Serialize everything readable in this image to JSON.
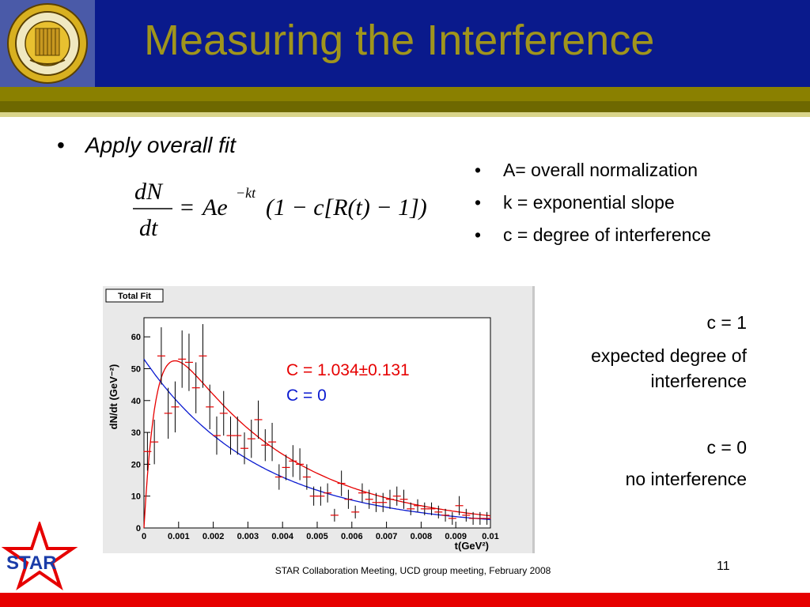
{
  "slide": {
    "title": "Measuring the Interference",
    "bullet_main": "Apply overall fit",
    "bullet_symbol": "•",
    "definitions": [
      "A= overall normalization",
      "k = exponential slope",
      "c = degree of interference"
    ],
    "notes": {
      "c1_title": "c = 1",
      "c1_line1": "expected degree of",
      "c1_line2": "interference",
      "c0_title": "c = 0",
      "c0_line1": "no interference"
    },
    "footer": "STAR Collaboration Meeting, UCD group meeting,  February 2008",
    "page_number": "11",
    "logo_text": "STAR"
  },
  "formula": {
    "numerator": "dN",
    "denominator": "dt",
    "rhs": "Ae",
    "exponent": "−kt",
    "bracket": "(1 − c[R(t) − 1])"
  },
  "chart_data": {
    "type": "scatter",
    "title": "Total Fit",
    "xlabel": "t(GeV²)",
    "ylabel": "dN/dt (GeV⁻²)",
    "xlim": [
      0,
      0.01
    ],
    "ylim": [
      0,
      66
    ],
    "x_ticks": [
      0,
      0.001,
      0.002,
      0.003,
      0.004,
      0.005,
      0.006,
      0.007,
      0.008,
      0.009,
      0.01
    ],
    "x_tick_labels": [
      "0",
      "0.001",
      "0.002",
      "0.003",
      "0.004",
      "0.005",
      "0.006",
      "0.007",
      "0.008",
      "0.009",
      "0.01"
    ],
    "y_ticks": [
      0,
      10,
      20,
      30,
      40,
      50,
      60
    ],
    "y_tick_labels": [
      "0",
      "10",
      "20",
      "30",
      "40",
      "50",
      "60"
    ],
    "points": [
      {
        "x": 0.0001,
        "y": 24,
        "err": 6
      },
      {
        "x": 0.0003,
        "y": 27,
        "err": 7
      },
      {
        "x": 0.0005,
        "y": 54,
        "err": 9
      },
      {
        "x": 0.0007,
        "y": 36,
        "err": 8
      },
      {
        "x": 0.0009,
        "y": 38,
        "err": 8
      },
      {
        "x": 0.0011,
        "y": 53,
        "err": 9
      },
      {
        "x": 0.0013,
        "y": 52,
        "err": 9
      },
      {
        "x": 0.0015,
        "y": 44,
        "err": 8
      },
      {
        "x": 0.0017,
        "y": 54,
        "err": 10
      },
      {
        "x": 0.0019,
        "y": 38,
        "err": 7
      },
      {
        "x": 0.0021,
        "y": 29,
        "err": 6
      },
      {
        "x": 0.0023,
        "y": 36,
        "err": 7
      },
      {
        "x": 0.0025,
        "y": 29,
        "err": 6
      },
      {
        "x": 0.0027,
        "y": 29,
        "err": 6
      },
      {
        "x": 0.0029,
        "y": 25,
        "err": 5
      },
      {
        "x": 0.0031,
        "y": 28,
        "err": 6
      },
      {
        "x": 0.0033,
        "y": 34,
        "err": 6
      },
      {
        "x": 0.0035,
        "y": 26,
        "err": 5
      },
      {
        "x": 0.0037,
        "y": 27,
        "err": 6
      },
      {
        "x": 0.0039,
        "y": 16,
        "err": 4
      },
      {
        "x": 0.0041,
        "y": 19,
        "err": 4
      },
      {
        "x": 0.0043,
        "y": 21,
        "err": 5
      },
      {
        "x": 0.0045,
        "y": 20,
        "err": 5
      },
      {
        "x": 0.0047,
        "y": 16,
        "err": 4
      },
      {
        "x": 0.0049,
        "y": 10,
        "err": 3
      },
      {
        "x": 0.0051,
        "y": 10,
        "err": 3
      },
      {
        "x": 0.0053,
        "y": 11,
        "err": 3
      },
      {
        "x": 0.0055,
        "y": 4,
        "err": 2
      },
      {
        "x": 0.0057,
        "y": 14,
        "err": 4
      },
      {
        "x": 0.0059,
        "y": 9,
        "err": 3
      },
      {
        "x": 0.0061,
        "y": 5,
        "err": 2
      },
      {
        "x": 0.0063,
        "y": 11,
        "err": 3
      },
      {
        "x": 0.0065,
        "y": 9,
        "err": 3
      },
      {
        "x": 0.0067,
        "y": 8,
        "err": 3
      },
      {
        "x": 0.0069,
        "y": 8,
        "err": 3
      },
      {
        "x": 0.0071,
        "y": 9,
        "err": 3
      },
      {
        "x": 0.0073,
        "y": 10,
        "err": 3
      },
      {
        "x": 0.0075,
        "y": 9,
        "err": 3
      },
      {
        "x": 0.0077,
        "y": 6,
        "err": 2
      },
      {
        "x": 0.0079,
        "y": 7,
        "err": 2
      },
      {
        "x": 0.0081,
        "y": 6,
        "err": 2
      },
      {
        "x": 0.0083,
        "y": 6,
        "err": 2
      },
      {
        "x": 0.0085,
        "y": 5,
        "err": 2
      },
      {
        "x": 0.0087,
        "y": 4,
        "err": 2
      },
      {
        "x": 0.0089,
        "y": 3,
        "err": 2
      },
      {
        "x": 0.0091,
        "y": 7,
        "err": 3
      },
      {
        "x": 0.0093,
        "y": 4,
        "err": 2
      },
      {
        "x": 0.0095,
        "y": 3,
        "err": 2
      },
      {
        "x": 0.0097,
        "y": 3,
        "err": 2
      },
      {
        "x": 0.0099,
        "y": 3,
        "err": 2
      }
    ],
    "fits": [
      {
        "label": "C = 1.034±0.131",
        "color": "#e60000",
        "A": 53,
        "k": 300,
        "c": 1.034,
        "r0": 0.0004
      },
      {
        "label": "C = 0",
        "color": "#0a1ad0",
        "A": 53,
        "k": 300,
        "c": 0
      }
    ],
    "point_color": "#e60000",
    "error_color": "#000000"
  }
}
